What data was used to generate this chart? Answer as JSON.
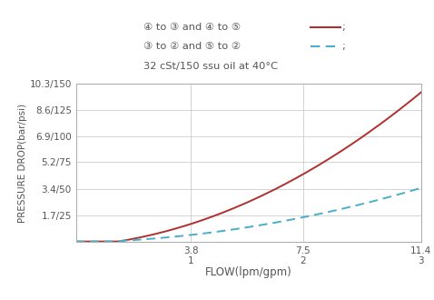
{
  "x_flow_lpm": [
    0,
    1.9,
    3.8,
    5.65,
    7.5,
    9.45,
    11.4
  ],
  "y_red_bar": [
    0,
    0.08,
    0.55,
    2.2,
    5.2,
    7.2,
    9.3
  ],
  "y_cyan_bar": [
    0,
    0.05,
    0.3,
    0.9,
    1.7,
    2.55,
    3.4
  ],
  "xtick_lpm": [
    3.8,
    7.5,
    11.4
  ],
  "xtick_gpm": [
    1,
    2,
    3
  ],
  "ytick_bar": [
    1.7,
    3.4,
    5.2,
    6.9,
    8.6,
    10.3
  ],
  "ytick_psi": [
    25,
    50,
    75,
    100,
    125,
    150
  ],
  "xlim": [
    0,
    11.4
  ],
  "ylim": [
    0,
    10.3
  ],
  "red_color": "#b03030",
  "cyan_color": "#4aaec8",
  "grid_color": "#cccccc",
  "bg_color": "#ffffff",
  "text_color": "#555555",
  "xlabel": "FLOW(lpm/gpm)",
  "ylabel": "PRESSURE DROP(bar/psi)",
  "legend_text1": "④ to ③ and ④ to ⑤",
  "legend_text2": "③ to ② and ⑤ to ②",
  "legend_text3": "32 cSt/150 ssu oil at 40°C"
}
